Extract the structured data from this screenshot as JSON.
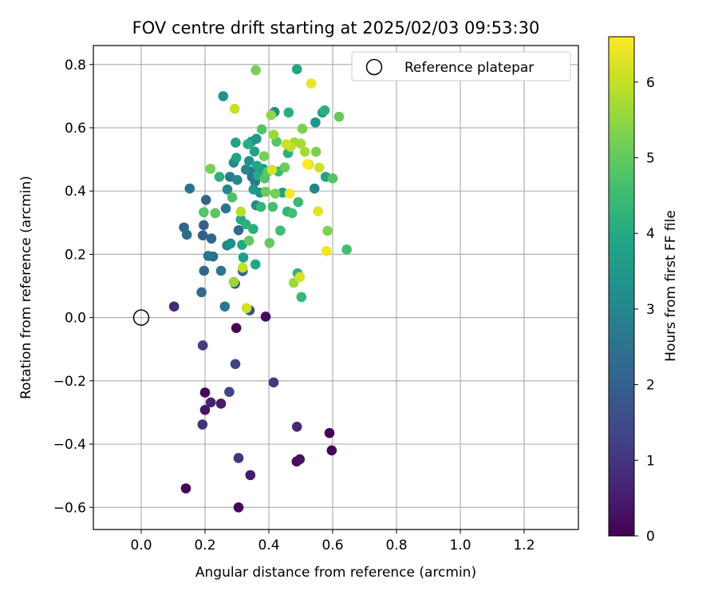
{
  "chart_data": {
    "type": "scatter",
    "title": "FOV centre drift starting at 2025/02/03 09:53:30",
    "xlabel": "Angular distance from reference (arcmin)",
    "ylabel": "Rotation from reference (arcmin)",
    "xlim": [
      -0.15,
      1.37
    ],
    "ylim": [
      -0.67,
      0.86
    ],
    "xticks": [
      0.0,
      0.2,
      0.4,
      0.6,
      0.8,
      1.0,
      1.2
    ],
    "xtick_labels": [
      "0.0",
      "0.2",
      "0.4",
      "0.6",
      "0.8",
      "1.0",
      "1.2"
    ],
    "yticks": [
      -0.6,
      -0.4,
      -0.2,
      0.0,
      0.2,
      0.4,
      0.6,
      0.8
    ],
    "ytick_labels": [
      "−0.6",
      "−0.4",
      "−0.2",
      "0.0",
      "0.2",
      "0.4",
      "0.6",
      "0.8"
    ],
    "grid": true,
    "colormap": "viridis",
    "colorbar": {
      "label": "Hours from first FF file",
      "range": [
        0,
        6.6
      ],
      "ticks": [
        0,
        1,
        2,
        3,
        4,
        5,
        6
      ],
      "tick_labels": [
        "0",
        "1",
        "2",
        "3",
        "4",
        "5",
        "6"
      ]
    },
    "legend": {
      "position": "upper-right",
      "entries": [
        {
          "label": "Reference platepar",
          "marker": "open-circle",
          "color": "#000000"
        }
      ]
    },
    "reference_point": {
      "x": 0.0,
      "y": 0.0
    },
    "points": [
      {
        "x": 0.14,
        "y": -0.54,
        "c": 0.1
      },
      {
        "x": 0.305,
        "y": -0.6,
        "c": 0.1
      },
      {
        "x": 0.2,
        "y": -0.237,
        "c": 0.1
      },
      {
        "x": 0.298,
        "y": -0.033,
        "c": 0.1
      },
      {
        "x": 0.39,
        "y": 0.003,
        "c": 0.2
      },
      {
        "x": 0.59,
        "y": -0.365,
        "c": 0.1
      },
      {
        "x": 0.597,
        "y": -0.42,
        "c": 0.1
      },
      {
        "x": 0.487,
        "y": -0.455,
        "c": 0.2
      },
      {
        "x": 0.497,
        "y": -0.448,
        "c": 0.3
      },
      {
        "x": 0.2,
        "y": -0.292,
        "c": 0.4
      },
      {
        "x": 0.218,
        "y": -0.268,
        "c": 0.6
      },
      {
        "x": 0.25,
        "y": -0.272,
        "c": 0.5
      },
      {
        "x": 0.342,
        "y": -0.498,
        "c": 0.5
      },
      {
        "x": 0.488,
        "y": -0.345,
        "c": 0.7
      },
      {
        "x": 0.103,
        "y": 0.035,
        "c": 0.8
      },
      {
        "x": 0.305,
        "y": -0.444,
        "c": 1.0
      },
      {
        "x": 0.415,
        "y": -0.205,
        "c": 1.1
      },
      {
        "x": 0.193,
        "y": -0.088,
        "c": 1.2
      },
      {
        "x": 0.295,
        "y": -0.147,
        "c": 1.3
      },
      {
        "x": 0.192,
        "y": -0.338,
        "c": 1.0
      },
      {
        "x": 0.276,
        "y": -0.235,
        "c": 1.4
      },
      {
        "x": 0.34,
        "y": 0.023,
        "c": 1.6
      },
      {
        "x": 0.134,
        "y": 0.285,
        "c": 2.2
      },
      {
        "x": 0.143,
        "y": 0.262,
        "c": 2.4
      },
      {
        "x": 0.152,
        "y": 0.408,
        "c": 2.5
      },
      {
        "x": 0.189,
        "y": 0.08,
        "c": 2.3
      },
      {
        "x": 0.197,
        "y": 0.148,
        "c": 2.2
      },
      {
        "x": 0.193,
        "y": 0.26,
        "c": 1.9
      },
      {
        "x": 0.196,
        "y": 0.292,
        "c": 2.0
      },
      {
        "x": 0.203,
        "y": 0.372,
        "c": 2.1
      },
      {
        "x": 0.21,
        "y": 0.195,
        "c": 2.6
      },
      {
        "x": 0.22,
        "y": 0.25,
        "c": 2.2
      },
      {
        "x": 0.225,
        "y": 0.193,
        "c": 2.4
      },
      {
        "x": 0.257,
        "y": 0.7,
        "c": 3.3
      },
      {
        "x": 0.25,
        "y": 0.148,
        "c": 2.6
      },
      {
        "x": 0.262,
        "y": 0.035,
        "c": 2.6
      },
      {
        "x": 0.265,
        "y": 0.345,
        "c": 2.6
      },
      {
        "x": 0.269,
        "y": 0.228,
        "c": 3.0
      },
      {
        "x": 0.27,
        "y": 0.405,
        "c": 3.0
      },
      {
        "x": 0.278,
        "y": 0.445,
        "c": 2.7
      },
      {
        "x": 0.28,
        "y": 0.234,
        "c": 3.3
      },
      {
        "x": 0.29,
        "y": 0.49,
        "c": 3.0
      },
      {
        "x": 0.294,
        "y": 0.107,
        "c": 2.0
      },
      {
        "x": 0.298,
        "y": 0.505,
        "c": 3.8
      },
      {
        "x": 0.296,
        "y": 0.553,
        "c": 3.8
      },
      {
        "x": 0.301,
        "y": 0.435,
        "c": 3.1
      },
      {
        "x": 0.305,
        "y": 0.276,
        "c": 2.3
      },
      {
        "x": 0.312,
        "y": 0.31,
        "c": 4.0
      },
      {
        "x": 0.318,
        "y": 0.147,
        "c": 2.2
      },
      {
        "x": 0.32,
        "y": 0.19,
        "c": 3.7
      },
      {
        "x": 0.316,
        "y": 0.23,
        "c": 3.9
      },
      {
        "x": 0.328,
        "y": 0.295,
        "c": 4.2
      },
      {
        "x": 0.328,
        "y": 0.468,
        "c": 3.0
      },
      {
        "x": 0.334,
        "y": 0.548,
        "c": 4.1
      },
      {
        "x": 0.338,
        "y": 0.495,
        "c": 3.4
      },
      {
        "x": 0.343,
        "y": 0.462,
        "c": 2.6
      },
      {
        "x": 0.345,
        "y": 0.556,
        "c": 3.5
      },
      {
        "x": 0.347,
        "y": 0.445,
        "c": 2.5
      },
      {
        "x": 0.351,
        "y": 0.28,
        "c": 4.1
      },
      {
        "x": 0.352,
        "y": 0.405,
        "c": 3.6
      },
      {
        "x": 0.355,
        "y": 0.525,
        "c": 3.8
      },
      {
        "x": 0.357,
        "y": 0.43,
        "c": 2.7
      },
      {
        "x": 0.358,
        "y": 0.168,
        "c": 3.9
      },
      {
        "x": 0.359,
        "y": 0.782,
        "c": 5.2
      },
      {
        "x": 0.36,
        "y": 0.355,
        "c": 3.1
      },
      {
        "x": 0.361,
        "y": 0.565,
        "c": 3.5
      },
      {
        "x": 0.363,
        "y": 0.48,
        "c": 3.9
      },
      {
        "x": 0.365,
        "y": 0.45,
        "c": 4.0
      },
      {
        "x": 0.372,
        "y": 0.395,
        "c": 3.4
      },
      {
        "x": 0.375,
        "y": 0.35,
        "c": 4.3
      },
      {
        "x": 0.378,
        "y": 0.595,
        "c": 4.8
      },
      {
        "x": 0.382,
        "y": 0.47,
        "c": 3.5
      },
      {
        "x": 0.385,
        "y": 0.51,
        "c": 5.2
      },
      {
        "x": 0.387,
        "y": 0.44,
        "c": 4.8
      },
      {
        "x": 0.39,
        "y": 0.398,
        "c": 5.1
      },
      {
        "x": 0.395,
        "y": 0.46,
        "c": 4.9
      },
      {
        "x": 0.402,
        "y": 0.236,
        "c": 5.0
      },
      {
        "x": 0.407,
        "y": 0.64,
        "c": 5.5
      },
      {
        "x": 0.41,
        "y": 0.467,
        "c": 6.2
      },
      {
        "x": 0.412,
        "y": 0.35,
        "c": 4.6
      },
      {
        "x": 0.415,
        "y": 0.578,
        "c": 5.6
      },
      {
        "x": 0.418,
        "y": 0.65,
        "c": 3.2
      },
      {
        "x": 0.42,
        "y": 0.392,
        "c": 5.2
      },
      {
        "x": 0.424,
        "y": 0.556,
        "c": 4.8
      },
      {
        "x": 0.43,
        "y": 0.462,
        "c": 4.4
      },
      {
        "x": 0.436,
        "y": 0.275,
        "c": 4.5
      },
      {
        "x": 0.443,
        "y": 0.395,
        "c": 3.7
      },
      {
        "x": 0.45,
        "y": 0.475,
        "c": 5.1
      },
      {
        "x": 0.455,
        "y": 0.548,
        "c": 6.1
      },
      {
        "x": 0.458,
        "y": 0.335,
        "c": 4.3
      },
      {
        "x": 0.46,
        "y": 0.52,
        "c": 4.2
      },
      {
        "x": 0.462,
        "y": 0.648,
        "c": 4.1
      },
      {
        "x": 0.465,
        "y": 0.392,
        "c": 6.5
      },
      {
        "x": 0.468,
        "y": 0.54,
        "c": 5.9
      },
      {
        "x": 0.473,
        "y": 0.33,
        "c": 4.6
      },
      {
        "x": 0.478,
        "y": 0.11,
        "c": 5.6
      },
      {
        "x": 0.48,
        "y": 0.554,
        "c": 5.7
      },
      {
        "x": 0.488,
        "y": 0.785,
        "c": 3.9
      },
      {
        "x": 0.49,
        "y": 0.14,
        "c": 4.2
      },
      {
        "x": 0.492,
        "y": 0.365,
        "c": 4.4
      },
      {
        "x": 0.497,
        "y": 0.128,
        "c": 6.2
      },
      {
        "x": 0.5,
        "y": 0.55,
        "c": 5.7
      },
      {
        "x": 0.502,
        "y": 0.065,
        "c": 4.4
      },
      {
        "x": 0.505,
        "y": 0.597,
        "c": 5.3
      },
      {
        "x": 0.513,
        "y": 0.524,
        "c": 5.7
      },
      {
        "x": 0.52,
        "y": 0.485,
        "c": 6.6
      },
      {
        "x": 0.525,
        "y": 0.484,
        "c": 6.0
      },
      {
        "x": 0.533,
        "y": 0.74,
        "c": 6.4
      },
      {
        "x": 0.543,
        "y": 0.408,
        "c": 2.9
      },
      {
        "x": 0.546,
        "y": 0.617,
        "c": 3.4
      },
      {
        "x": 0.548,
        "y": 0.524,
        "c": 5.3
      },
      {
        "x": 0.554,
        "y": 0.336,
        "c": 6.3
      },
      {
        "x": 0.558,
        "y": 0.474,
        "c": 6.1
      },
      {
        "x": 0.568,
        "y": 0.648,
        "c": 3.6
      },
      {
        "x": 0.575,
        "y": 0.655,
        "c": 4.2
      },
      {
        "x": 0.578,
        "y": 0.445,
        "c": 3.8
      },
      {
        "x": 0.58,
        "y": 0.21,
        "c": 6.5
      },
      {
        "x": 0.584,
        "y": 0.274,
        "c": 5.3
      },
      {
        "x": 0.6,
        "y": 0.44,
        "c": 4.8
      },
      {
        "x": 0.62,
        "y": 0.635,
        "c": 5.0
      },
      {
        "x": 0.644,
        "y": 0.215,
        "c": 4.6
      },
      {
        "x": 0.217,
        "y": 0.47,
        "c": 5.2
      },
      {
        "x": 0.196,
        "y": 0.333,
        "c": 4.8
      },
      {
        "x": 0.232,
        "y": 0.33,
        "c": 4.9
      },
      {
        "x": 0.293,
        "y": 0.66,
        "c": 6.0
      },
      {
        "x": 0.29,
        "y": 0.113,
        "c": 5.6
      },
      {
        "x": 0.312,
        "y": 0.335,
        "c": 5.9
      },
      {
        "x": 0.318,
        "y": 0.158,
        "c": 6.0
      },
      {
        "x": 0.33,
        "y": 0.03,
        "c": 6.1
      },
      {
        "x": 0.338,
        "y": 0.243,
        "c": 5.0
      },
      {
        "x": 0.285,
        "y": 0.38,
        "c": 4.7
      },
      {
        "x": 0.245,
        "y": 0.445,
        "c": 4.2
      }
    ]
  }
}
